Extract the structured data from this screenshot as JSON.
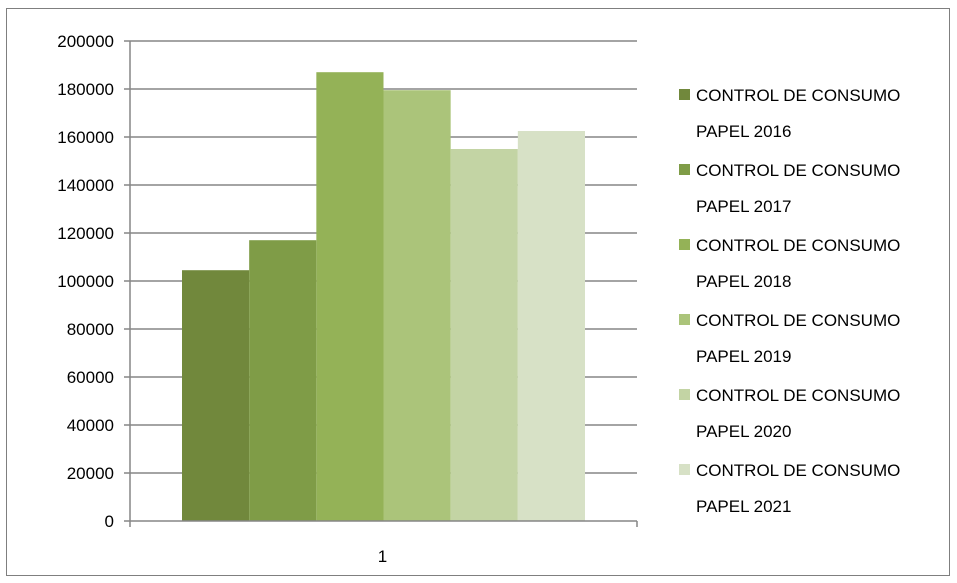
{
  "chart_data": {
    "type": "bar",
    "categories": [
      "1"
    ],
    "series": [
      {
        "name": "CONTROL DE CONSUMO PAPEL 2016",
        "values": [
          104500
        ],
        "color": "#71883c",
        "legend_lines": [
          "CONTROL DE CONSUMO",
          "PAPEL 2016"
        ]
      },
      {
        "name": "CONTROL DE CONSUMO PAPEL 2017",
        "values": [
          117000
        ],
        "color": "#7f9c47",
        "legend_lines": [
          "CONTROL DE CONSUMO",
          "PAPEL 2017"
        ]
      },
      {
        "name": "CONTROL DE CONSUMO PAPEL 2018",
        "values": [
          187000
        ],
        "color": "#94b257",
        "legend_lines": [
          "CONTROL DE CONSUMO",
          "PAPEL 2018"
        ]
      },
      {
        "name": "CONTROL DE CONSUMO PAPEL 2019",
        "values": [
          179500
        ],
        "color": "#abc47a",
        "legend_lines": [
          "CONTROL DE CONSUMO",
          "PAPEL 2019"
        ]
      },
      {
        "name": "CONTROL DE CONSUMO PAPEL 2020",
        "values": [
          155000
        ],
        "color": "#c3d4a4",
        "legend_lines": [
          "CONTROL DE CONSUMO",
          "PAPEL 2020"
        ]
      },
      {
        "name": "CONTROL DE CONSUMO PAPEL 2021",
        "values": [
          162500
        ],
        "color": "#d7e1c6",
        "legend_lines": [
          "CONTROL DE CONSUMO",
          "PAPEL 2021"
        ]
      }
    ],
    "title": "",
    "xlabel": "",
    "ylabel": "",
    "ylim": [
      0,
      200000
    ],
    "yticks": [
      "0",
      "20000",
      "40000",
      "60000",
      "80000",
      "100000",
      "120000",
      "140000",
      "160000",
      "180000",
      "200000"
    ],
    "grid": true,
    "legend_position": "right"
  }
}
